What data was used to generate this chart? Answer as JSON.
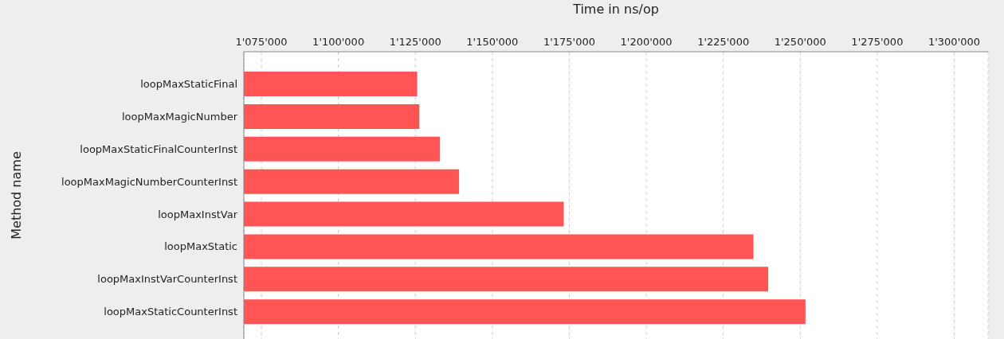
{
  "chart_data": {
    "type": "bar",
    "orientation": "horizontal",
    "xlabel": "Time in ns/op",
    "ylabel": "Method name",
    "categories": [
      "loopMaxStaticFinal",
      "loopMaxMagicNumber",
      "loopMaxStaticFinalCounterInst",
      "loopMaxMagicNumberCounterInst",
      "loopMaxInstVar",
      "loopMaxStatic",
      "loopMaxInstVarCounterInst",
      "loopMaxStaticCounterInst"
    ],
    "values": [
      1125600,
      1126300,
      1133000,
      1139200,
      1173200,
      1234800,
      1239600,
      1251700
    ],
    "color": "#ff5555",
    "xlim": [
      1069300,
      1311000
    ],
    "xticks": [
      {
        "value": 1075000,
        "label": "1'075'000"
      },
      {
        "value": 1100000,
        "label": "1'100'000"
      },
      {
        "value": 1125000,
        "label": "1'125'000"
      },
      {
        "value": 1150000,
        "label": "1'150'000"
      },
      {
        "value": 1175000,
        "label": "1'175'000"
      },
      {
        "value": 1200000,
        "label": "1'200'000"
      },
      {
        "value": 1225000,
        "label": "1'225'000"
      },
      {
        "value": 1250000,
        "label": "1'250'000"
      },
      {
        "value": 1275000,
        "label": "1'275'000"
      },
      {
        "value": 1300000,
        "label": "1'300'000"
      }
    ],
    "grid": "x"
  }
}
